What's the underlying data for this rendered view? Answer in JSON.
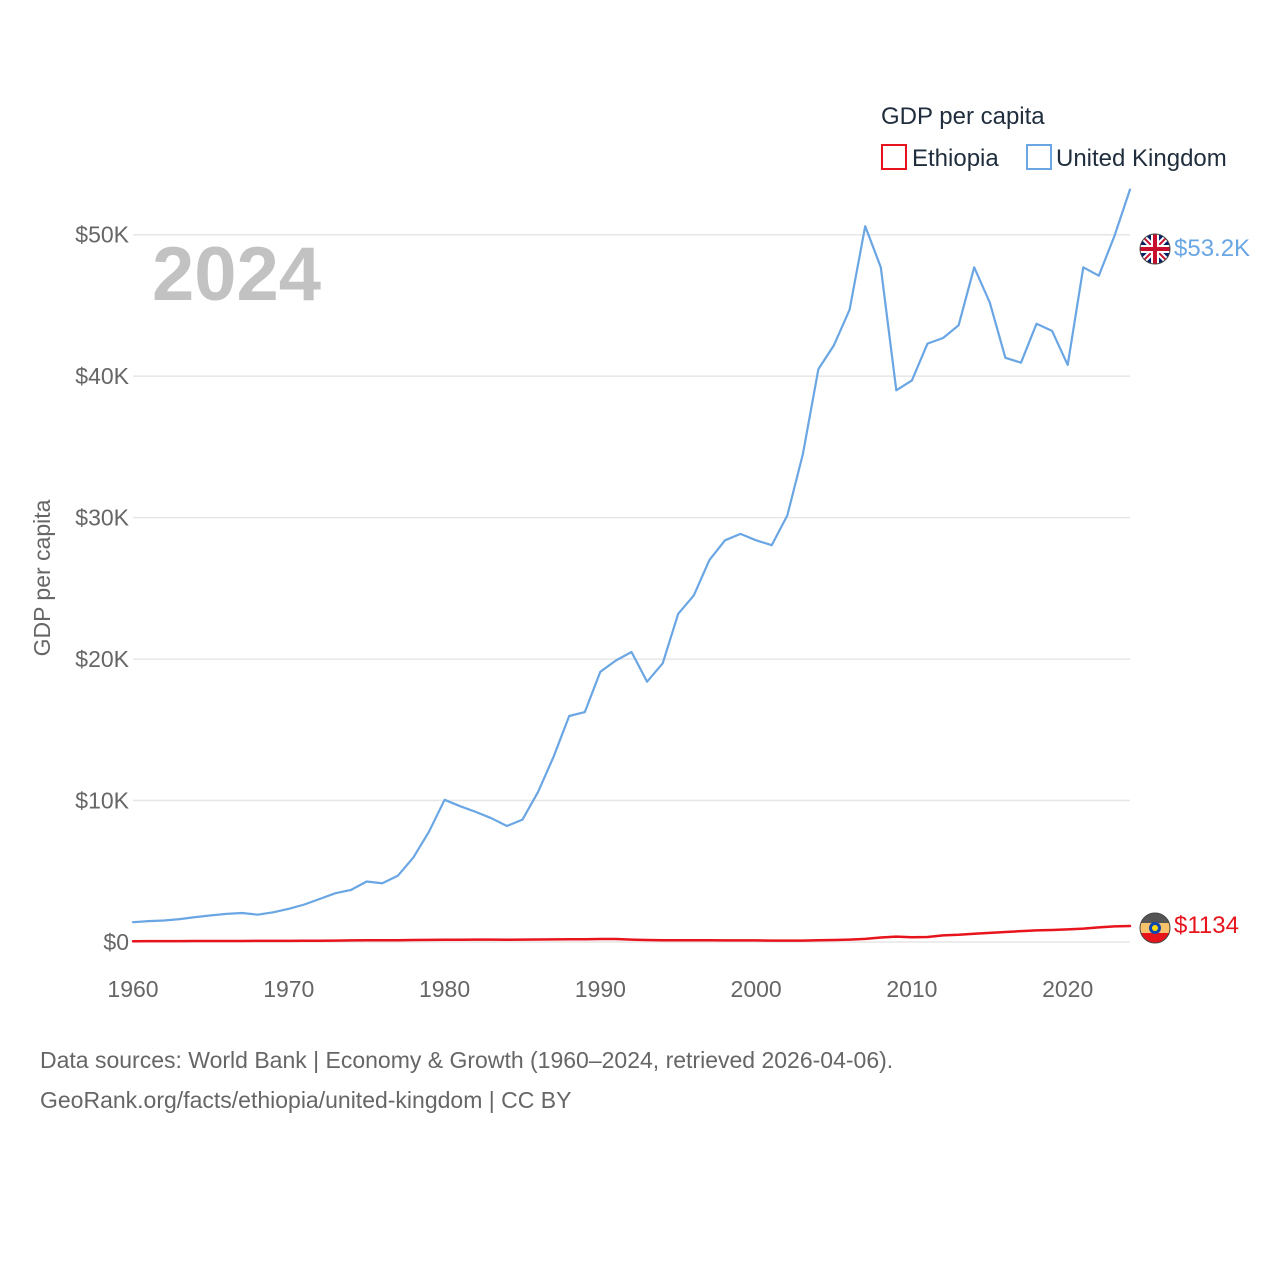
{
  "chart_data": {
    "type": "line",
    "year_label": "2024",
    "ylabel": "GDP per capita",
    "ylim": [
      0,
      55000
    ],
    "xlim": [
      1960,
      2024
    ],
    "x_ticks": [
      1960,
      1970,
      1980,
      1990,
      2000,
      2010,
      2020
    ],
    "x_tick_labels": [
      "1960",
      "1970",
      "1980",
      "1990",
      "2000",
      "2010",
      "2020"
    ],
    "y_ticks": [
      0,
      10000,
      20000,
      30000,
      40000,
      50000
    ],
    "y_tick_labels": [
      "$0",
      "$10K",
      "$20K",
      "$30K",
      "$40K",
      "$50K"
    ],
    "legend": {
      "title": "GDP per capita",
      "position": "top-right"
    },
    "x": [
      1960,
      1961,
      1962,
      1963,
      1964,
      1965,
      1966,
      1967,
      1968,
      1969,
      1970,
      1971,
      1972,
      1973,
      1974,
      1975,
      1976,
      1977,
      1978,
      1979,
      1980,
      1981,
      1982,
      1983,
      1984,
      1985,
      1986,
      1987,
      1988,
      1989,
      1990,
      1991,
      1992,
      1993,
      1994,
      1995,
      1996,
      1997,
      1998,
      1999,
      2000,
      2001,
      2002,
      2003,
      2004,
      2005,
      2006,
      2007,
      2008,
      2009,
      2010,
      2011,
      2012,
      2013,
      2014,
      2015,
      2016,
      2017,
      2018,
      2019,
      2020,
      2021,
      2022,
      2023,
      2024
    ],
    "series": [
      {
        "name": "Ethiopia",
        "color": "#e8141c",
        "end_label": "$1134",
        "flag": "ethiopia-flag",
        "values": [
          60,
          62,
          64,
          66,
          68,
          70,
          72,
          74,
          76,
          78,
          80,
          84,
          90,
          100,
          110,
          118,
          124,
          130,
          140,
          150,
          160,
          165,
          170,
          172,
          160,
          170,
          180,
          185,
          190,
          200,
          215,
          210,
          170,
          140,
          120,
          125,
          130,
          120,
          110,
          110,
          110,
          100,
          100,
          100,
          120,
          140,
          170,
          220,
          320,
          380,
          340,
          350,
          470,
          510,
          580,
          640,
          710,
          770,
          820,
          850,
          890,
          950,
          1030,
          1100,
          1134
        ]
      },
      {
        "name": "United Kingdom",
        "color": "#6aa6e3",
        "end_label": "$53.2K",
        "flag": "uk-flag",
        "values": [
          1400,
          1480,
          1520,
          1620,
          1760,
          1880,
          1990,
          2050,
          1930,
          2100,
          2350,
          2650,
          3050,
          3450,
          3680,
          4280,
          4150,
          4680,
          5980,
          7800,
          10050,
          9600,
          9200,
          8750,
          8200,
          8650,
          10600,
          13100,
          15980,
          16250,
          19100,
          19900,
          20500,
          18400,
          19700,
          23200,
          24500,
          27000,
          28400,
          28850,
          28400,
          28050,
          30150,
          34500,
          40500,
          42200,
          44700,
          50600,
          47700,
          39000,
          39700,
          42300,
          42700,
          43600,
          47700,
          45200,
          41300,
          40950,
          43700,
          43200,
          40800,
          47700,
          47100,
          49900,
          53200
        ]
      }
    ]
  },
  "footer": {
    "line1": "Data sources: World Bank | Economy & Growth (1960–2024, retrieved 2026-04-06).",
    "line2": "GeoRank.org/facts/ethiopia/united-kingdom | CC BY"
  }
}
